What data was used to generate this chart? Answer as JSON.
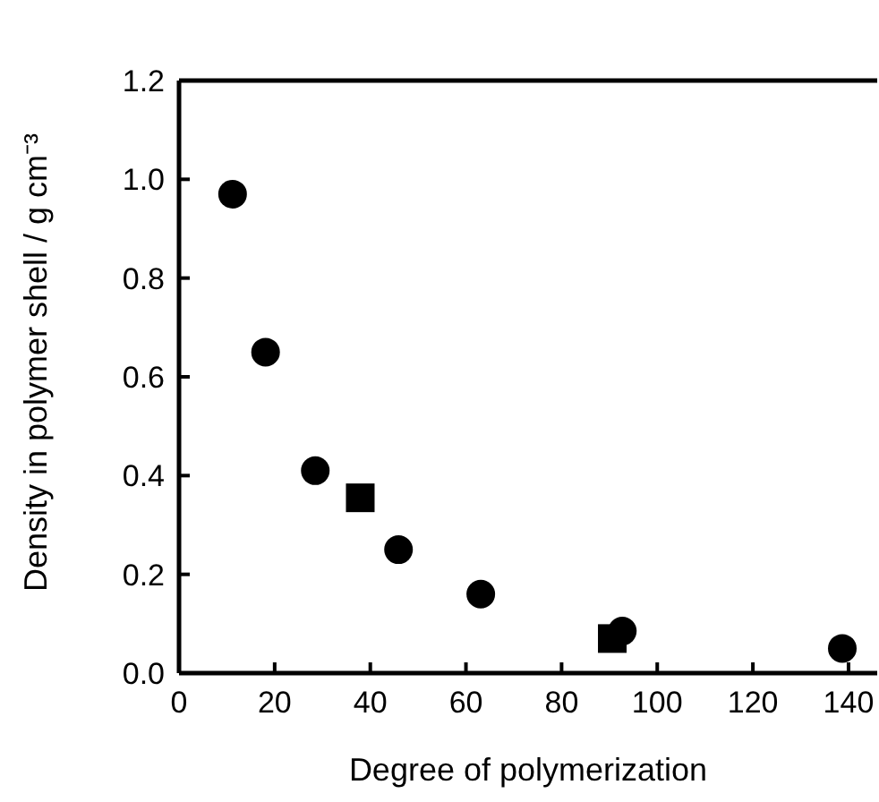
{
  "chart_data": {
    "type": "scatter",
    "xlabel": "Degree of polymerization",
    "ylabel": "Density in polymer shell / g cm⁻³",
    "xlim": [
      0,
      146
    ],
    "ylim": [
      0,
      1.2
    ],
    "xticks": [
      0,
      20,
      40,
      60,
      80,
      100,
      120,
      140
    ],
    "yticks": [
      {
        "value": 0,
        "label": "0.0"
      },
      {
        "value": 0.2,
        "label": "0.2"
      },
      {
        "value": 0.4,
        "label": "0.4"
      },
      {
        "value": 0.6,
        "label": "0.6"
      },
      {
        "value": 0.8,
        "label": "0.8"
      },
      {
        "value": 1,
        "label": "1.0"
      },
      {
        "value": 1.2,
        "label": "1.2"
      }
    ],
    "grid": false,
    "series": [
      {
        "color": "#000000",
        "marker": "circle",
        "x": [
          11.2,
          18.1,
          28.5,
          45.9,
          63.1,
          92.7,
          138.7
        ],
        "values": [
          0.97,
          0.65,
          0.41,
          0.25,
          0.16,
          0.085,
          0.05
        ]
      },
      {
        "color": "#000000",
        "marker": "square",
        "x": [
          37.9,
          90.6
        ],
        "values": [
          0.355,
          0.07
        ]
      }
    ]
  }
}
